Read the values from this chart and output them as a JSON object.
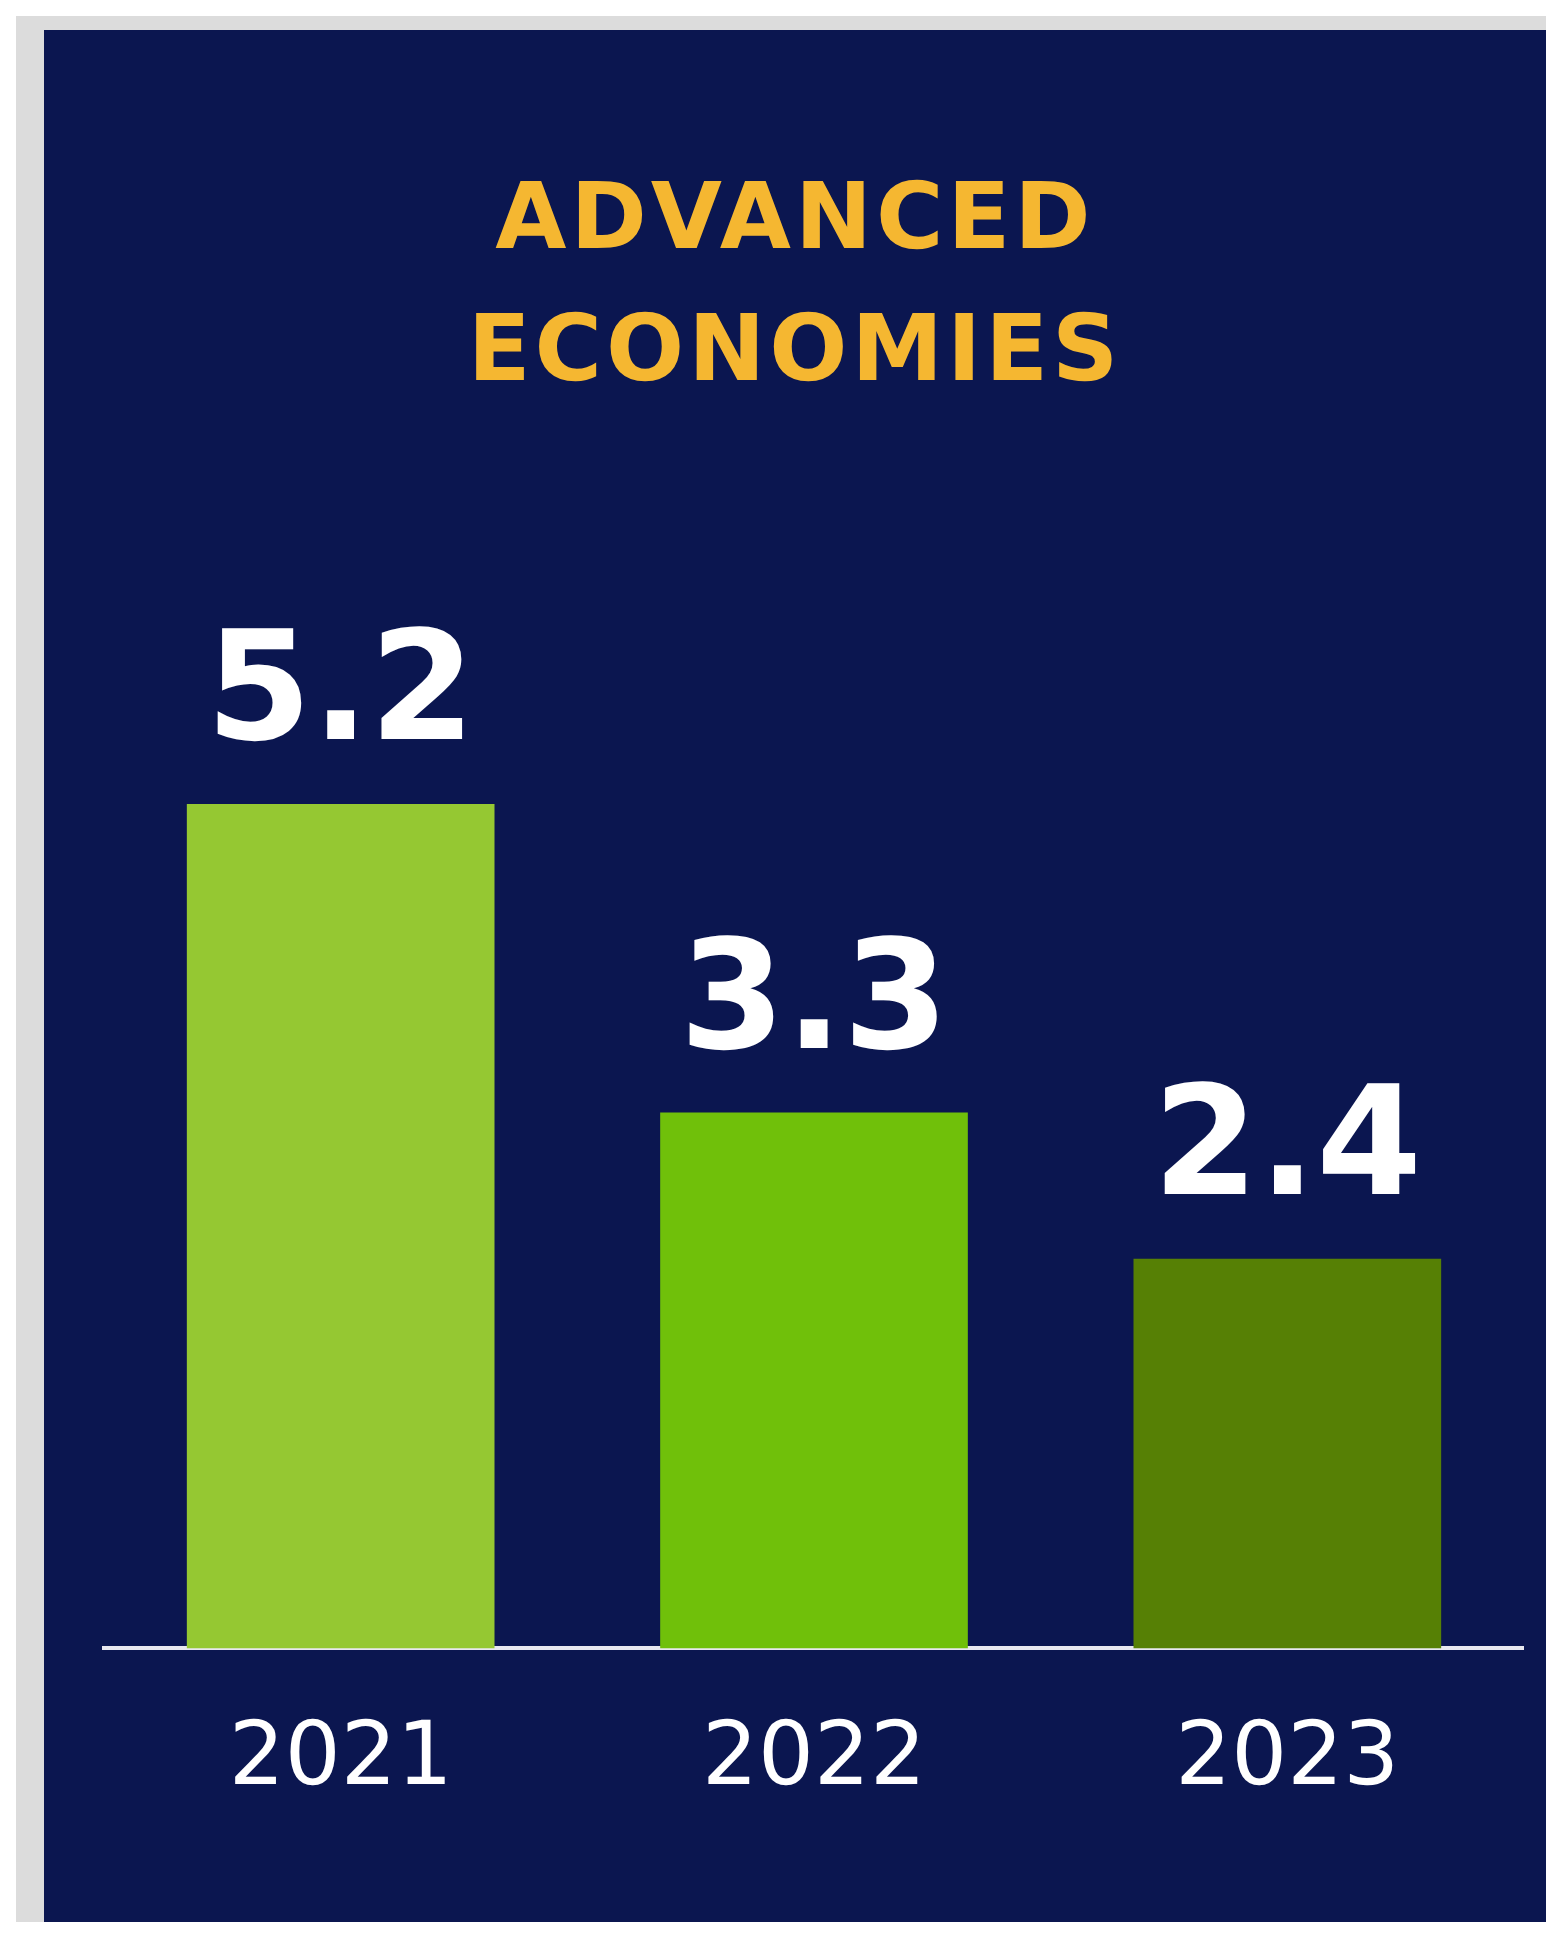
{
  "chart_data": {
    "type": "bar",
    "title": "ADVANCED ECONOMIES",
    "categories": [
      "2021",
      "2022",
      "2023"
    ],
    "values": [
      5.2,
      3.3,
      2.4
    ],
    "colors": [
      "#95c832",
      "#70c00a",
      "#568005"
    ],
    "data_labels": true,
    "grid": false,
    "legend": false
  }
}
